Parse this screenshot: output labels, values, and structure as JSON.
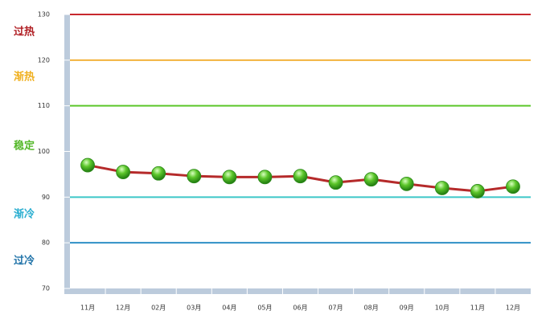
{
  "chart_data": {
    "type": "line",
    "categories": [
      "11月",
      "12月",
      "02月",
      "03月",
      "04月",
      "05月",
      "06月",
      "07月",
      "08月",
      "09月",
      "10月",
      "11月",
      "12月"
    ],
    "series": [
      {
        "color": "#b52a2a",
        "marker_color": "#4caf2a",
        "values": [
          97,
          95.5,
          95.2,
          94.6,
          94.4,
          94.4,
          94.6,
          93.2,
          93.9,
          92.9,
          92.0,
          91.3,
          92.3
        ]
      }
    ],
    "ylim": [
      70,
      130
    ],
    "yticks": [
      70,
      80,
      90,
      100,
      110,
      120,
      130
    ],
    "reference_lines": [
      {
        "value": 130,
        "color": "#c8282d"
      },
      {
        "value": 120,
        "color": "#f3b23c"
      },
      {
        "value": 110,
        "color": "#5cc62a"
      },
      {
        "value": 90,
        "color": "#3cc6c8"
      },
      {
        "value": 80,
        "color": "#2e8fc6"
      }
    ],
    "zones": [
      {
        "label": "过热",
        "color": "#b01e23"
      },
      {
        "label": "渐热",
        "color": "#f0b020"
      },
      {
        "label": "稳定",
        "color": "#55b82a"
      },
      {
        "label": "渐冷",
        "color": "#2aaed0"
      },
      {
        "label": "过冷",
        "color": "#1f72a8"
      }
    ]
  }
}
